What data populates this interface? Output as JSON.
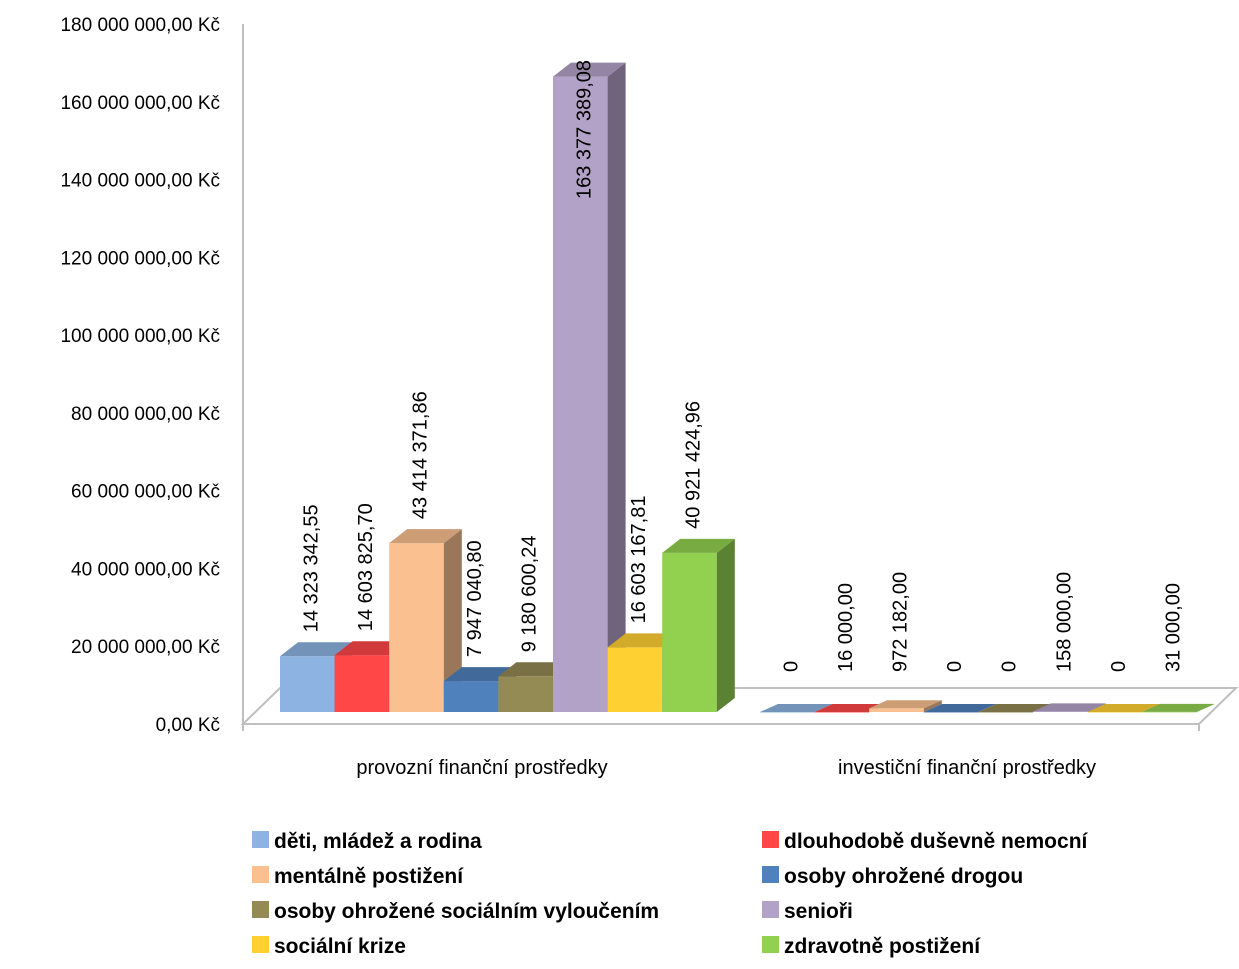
{
  "chart_data": {
    "type": "bar",
    "style": "3d-clustered-column",
    "categories": [
      "provozní finanční prostředky",
      "investiční finanční prostředky"
    ],
    "series": [
      {
        "name": "děti, mládež a rodina",
        "color": "#8DB3E2",
        "values": [
          14323342.55,
          0
        ],
        "labels": [
          "14 323 342,55",
          "0"
        ]
      },
      {
        "name": "dlouhodobě duševně nemocní",
        "color": "#FF4747",
        "values": [
          14603825.7,
          16000
        ],
        "labels": [
          "14 603 825,70",
          "16 000,00"
        ]
      },
      {
        "name": "mentálně postižení",
        "color": "#FAC090",
        "values": [
          43414371.86,
          972182
        ],
        "labels": [
          "43 414 371,86",
          "972 182,00"
        ]
      },
      {
        "name": "osoby ohrožené drogou",
        "color": "#4F81BD",
        "values": [
          7947040.8,
          0
        ],
        "labels": [
          "7 947 040,80",
          "0"
        ]
      },
      {
        "name": "osoby ohrožené sociálním vyloučením",
        "color": "#948A54",
        "values": [
          9180600.24,
          0
        ],
        "labels": [
          "9 180 600,24",
          "0"
        ]
      },
      {
        "name": "senioři",
        "color": "#B3A2C7",
        "values": [
          163377389.08,
          158000
        ],
        "labels": [
          "163 377 389,08",
          "158 000,00"
        ]
      },
      {
        "name": "sociální krize",
        "color": "#FFD032",
        "values": [
          16603167.81,
          0
        ],
        "labels": [
          "16 603 167,81",
          "0"
        ]
      },
      {
        "name": "zdravotně postižení",
        "color": "#92D050",
        "values": [
          40921424.96,
          31000
        ],
        "labels": [
          "40 921 424,96",
          "31 000,00"
        ]
      }
    ],
    "ylim": [
      0,
      180000000
    ],
    "y_ticks": [
      {
        "value": 0,
        "label": "0,00 Kč"
      },
      {
        "value": 20000000,
        "label": "20 000 000,00 Kč"
      },
      {
        "value": 40000000,
        "label": "40 000 000,00 Kč"
      },
      {
        "value": 60000000,
        "label": "60 000 000,00 Kč"
      },
      {
        "value": 80000000,
        "label": "80 000 000,00 Kč"
      },
      {
        "value": 100000000,
        "label": "100 000 000,00 Kč"
      },
      {
        "value": 120000000,
        "label": "120 000 000,00 Kč"
      },
      {
        "value": 140000000,
        "label": "140 000 000,00 Kč"
      },
      {
        "value": 160000000,
        "label": "160 000 000,00 Kč"
      },
      {
        "value": 180000000,
        "label": "180 000 000,00 Kč"
      }
    ],
    "grid": false,
    "legend_position": "bottom"
  }
}
